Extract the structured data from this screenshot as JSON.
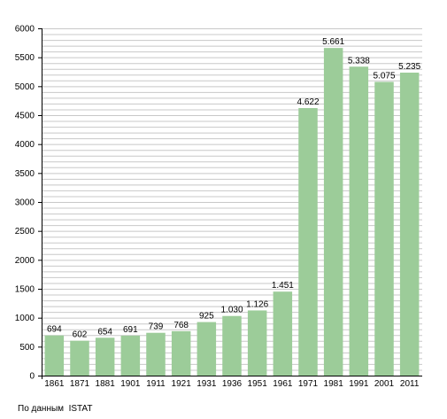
{
  "chart_data": {
    "type": "bar",
    "categories": [
      "1861",
      "1871",
      "1881",
      "1901",
      "1911",
      "1921",
      "1931",
      "1936",
      "1951",
      "1961",
      "1971",
      "1981",
      "1991",
      "2001",
      "2011"
    ],
    "values": [
      694,
      602,
      654,
      691,
      739,
      768,
      925,
      1030,
      1126,
      1451,
      4622,
      5661,
      5338,
      5075,
      5235
    ],
    "data_labels": [
      "694",
      "602",
      "654",
      "691",
      "739",
      "768",
      "925",
      "1.030",
      "1.126",
      "1.451",
      "4.622",
      "5.661",
      "5.338",
      "5.075",
      "5.235"
    ],
    "yticks": [
      0,
      500,
      1000,
      1500,
      2000,
      2500,
      3000,
      3500,
      4000,
      4500,
      5000,
      5500,
      6000
    ],
    "ylim": [
      0,
      6000
    ],
    "grid": true,
    "bar_color": "#9ccc99",
    "grid_color": "#c8c8c8"
  },
  "source_note": "По данным  ISTAT"
}
